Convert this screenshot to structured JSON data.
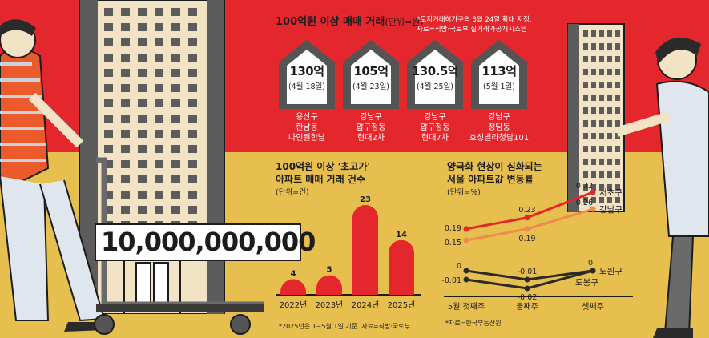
{
  "colors": {
    "red": "#e4262d",
    "yellow": "#e7bf4e",
    "dark": "#2a2a2a",
    "orange": "#f08a4b",
    "house_grey": "#545454"
  },
  "top": {
    "title": "100억원 이상 매매 거래",
    "unit": "(단위=원)",
    "note_line1": "*토지거래허가구역 3월 24일 확대 지정.",
    "note_line2": "자료=직방·국토부 실거래가공개시스템",
    "houses": [
      {
        "price": "130억",
        "date": "(4월 18일)",
        "loc1": "용산구",
        "loc2": "한남동",
        "loc3": "나인원한남"
      },
      {
        "price": "105억",
        "date": "(4월 23일)",
        "loc1": "강남구",
        "loc2": "압구정동",
        "loc3": "현대2차"
      },
      {
        "price": "130.5억",
        "date": "(4월 25일)",
        "loc1": "강남구",
        "loc2": "압구정동",
        "loc3": "현대7차"
      },
      {
        "price": "113억",
        "date": "(5월 1일)",
        "loc1": "강남구",
        "loc2": "청담동",
        "loc3": "효성빌라청담101"
      }
    ]
  },
  "banner": "10,000,000,000",
  "chart_data": [
    {
      "type": "bar",
      "title": "100억원 이상 '초고가' 아파트 매매 거래 건수",
      "title_line1": "100억원 이상 '초고가'",
      "title_line2": "아파트 매매 거래 건수",
      "unit": "(단위=건)",
      "categories": [
        "2022년",
        "2023년",
        "2024년",
        "2025년"
      ],
      "values": [
        4,
        5,
        23,
        14
      ],
      "value_labels": [
        "4",
        "5",
        "23",
        "14"
      ],
      "note": "*2025년은 1~5월 1일 기준. 자료=직방·국토부"
    },
    {
      "type": "line",
      "title": "양극화 현상이 심화되는 서울 아파트값 변동률",
      "title_line1": "양극화 현상이 심화되는",
      "title_line2": "서울 아파트값 변동률",
      "unit": "(단위=%)",
      "categories": [
        "5월 첫째주",
        "둘째주",
        "셋째주"
      ],
      "series": [
        {
          "name": "서초구",
          "values": [
            0.19,
            0.23,
            0.32
          ],
          "labels": [
            "0.19",
            "0.23",
            "0.32"
          ]
        },
        {
          "name": "강남구",
          "values": [
            0.15,
            0.19,
            0.26
          ],
          "labels": [
            "0.15",
            "0.19",
            "0.26"
          ]
        },
        {
          "name": "노원구",
          "values": [
            0,
            -0.01,
            0
          ],
          "labels": [
            "0",
            "-0.01",
            "0"
          ]
        },
        {
          "name": "도봉구",
          "values": [
            -0.01,
            -0.02,
            0
          ],
          "labels": [
            "-0.01",
            "-0.02",
            "0"
          ]
        }
      ],
      "note": "*자료=한국부동산원"
    }
  ]
}
